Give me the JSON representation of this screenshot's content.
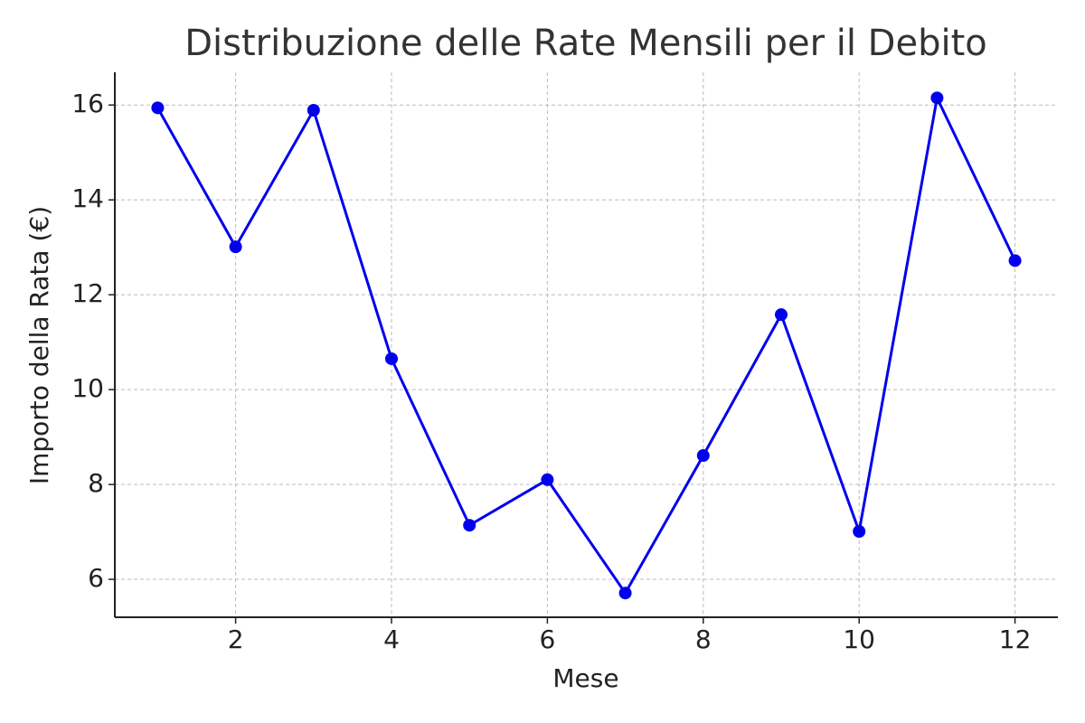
{
  "chart_data": {
    "type": "line",
    "title": "Distribuzione delle Rate Mensili per il Debito",
    "x_label": "Mese",
    "y_label": "Importo della Rata (€)",
    "x": [
      1,
      2,
      3,
      4,
      5,
      6,
      7,
      8,
      9,
      10,
      11,
      12
    ],
    "series": [
      {
        "name": "Rata",
        "color": "#0000ee",
        "values": [
          15.94,
          13.01,
          15.89,
          10.65,
          7.14,
          8.1,
          5.71,
          8.61,
          11.58,
          7.01,
          16.15,
          12.72
        ]
      }
    ],
    "xlim": [
      0.45,
      12.55
    ],
    "xticks": [
      2,
      4,
      6,
      8,
      10,
      12
    ],
    "ylim": [
      5.2,
      16.69
    ],
    "yticks": [
      6,
      8,
      10,
      12,
      14,
      16
    ],
    "grid": true
  }
}
